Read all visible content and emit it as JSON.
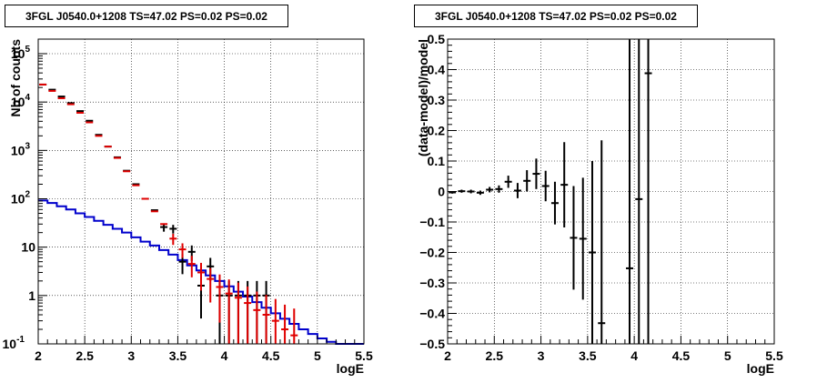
{
  "chart_data": [
    {
      "type": "histogram",
      "title": "3FGL J0540.0+1208 TS=47.02 PS=0.02 PS=0.02",
      "xlabel": "logE",
      "ylabel": "Nb of counts",
      "xlim": [
        2,
        5.5
      ],
      "ylim": [
        0.1,
        200000
      ],
      "log_y": true,
      "grid": true,
      "x_ticks": [
        "2",
        "2.5",
        "3",
        "3.5",
        "4",
        "4.5",
        "5",
        "5.5"
      ],
      "y_ticks": [
        {
          "base": "10",
          "exp": "-1"
        },
        {
          "base": "1",
          "exp": ""
        },
        {
          "base": "10",
          "exp": ""
        },
        {
          "base": "10",
          "exp": "2"
        },
        {
          "base": "10",
          "exp": "3"
        },
        {
          "base": "10",
          "exp": "4"
        },
        {
          "base": "10",
          "exp": "5"
        }
      ],
      "series": [
        {
          "color": "#000000",
          "x": [
            2.05,
            2.15,
            2.25,
            2.35,
            2.45,
            2.55,
            2.65,
            2.75,
            2.85,
            2.95,
            3.05,
            3.15,
            3.25,
            3.35,
            3.45,
            3.55,
            3.65,
            3.75,
            3.85,
            3.95,
            4.05,
            4.15,
            4.25,
            4.35,
            4.45
          ],
          "y": [
            23000,
            18000,
            13000,
            9500,
            6500,
            4100,
            2100,
            1200,
            720,
            380,
            200,
            100,
            58,
            26,
            24,
            5,
            8,
            1.6,
            4,
            1,
            1,
            1,
            1,
            1,
            1
          ]
        },
        {
          "color": "#e00000",
          "x": [
            2.05,
            2.15,
            2.25,
            2.35,
            2.45,
            2.55,
            2.65,
            2.75,
            2.85,
            2.95,
            3.05,
            3.15,
            3.25,
            3.35,
            3.45,
            3.55,
            3.65,
            3.75,
            3.85,
            3.95,
            4.05,
            4.15,
            4.25,
            4.35,
            4.45,
            4.55,
            4.65,
            4.75
          ],
          "y": [
            23000,
            17000,
            12000,
            9000,
            6000,
            3800,
            2000,
            1200,
            700,
            370,
            190,
            100,
            55,
            30,
            15,
            9,
            4.5,
            3,
            2.2,
            1.5,
            1.1,
            0.9,
            0.7,
            0.5,
            0.4,
            0.3,
            0.2,
            0.15
          ]
        },
        {
          "color": "#0000cc",
          "edges": [
            2.0,
            2.1,
            2.2,
            2.3,
            2.4,
            2.5,
            2.6,
            2.7,
            2.8,
            2.9,
            3.0,
            3.1,
            3.2,
            3.3,
            3.4,
            3.5,
            3.6,
            3.7,
            3.8,
            3.9,
            4.0,
            4.1,
            4.2,
            4.3,
            4.4,
            4.5,
            4.6,
            4.7,
            4.8,
            4.9,
            5.0,
            5.1,
            5.2,
            5.3,
            5.4,
            5.5
          ],
          "y": [
            92,
            82,
            70,
            60,
            50,
            42,
            35,
            29,
            24,
            20,
            16,
            13,
            10.8,
            8.7,
            7,
            5.4,
            4.2,
            3.3,
            2.6,
            2.0,
            1.55,
            1.2,
            0.95,
            0.73,
            0.56,
            0.43,
            0.33,
            0.26,
            0.2,
            0.16,
            0.13,
            0.11,
            0.1,
            0.1,
            0.1
          ]
        }
      ]
    },
    {
      "type": "scatter",
      "title": "3FGL J0540.0+1208 TS=47.02 PS=0.02 PS=0.02",
      "xlabel": "logE",
      "ylabel": "(data-model)/model",
      "xlim": [
        2,
        5.5
      ],
      "ylim": [
        -0.5,
        0.5
      ],
      "grid": true,
      "x_ticks": [
        "2",
        "2.5",
        "3",
        "3.5",
        "4",
        "4.5",
        "5",
        "5.5"
      ],
      "y_ticks": [
        "-0.5",
        "-0.4",
        "-0.3",
        "-0.2",
        "-0.1",
        "0",
        "0.1",
        "0.2",
        "0.3",
        "0.4",
        "0.5"
      ],
      "series": [
        {
          "color": "#000000",
          "x": [
            2.05,
            2.15,
            2.25,
            2.35,
            2.45,
            2.55,
            2.65,
            2.75,
            2.85,
            2.95,
            3.05,
            3.15,
            3.25,
            3.35,
            3.45,
            3.55,
            3.65,
            3.95,
            4.05,
            4.15
          ],
          "y": [
            -0.003,
            0.001,
            0.0,
            -0.004,
            0.006,
            0.008,
            0.032,
            0.003,
            0.035,
            0.058,
            0.018,
            -0.038,
            0.022,
            -0.152,
            -0.155,
            -0.2,
            -0.432,
            -0.252,
            -0.025,
            0.388
          ],
          "err": [
            0.004,
            0.005,
            0.006,
            0.007,
            0.009,
            0.012,
            0.02,
            0.025,
            0.035,
            0.05,
            0.05,
            0.07,
            0.14,
            0.17,
            0.2,
            0.3,
            0.6,
            1.5,
            1.5,
            1.5
          ]
        }
      ]
    }
  ]
}
